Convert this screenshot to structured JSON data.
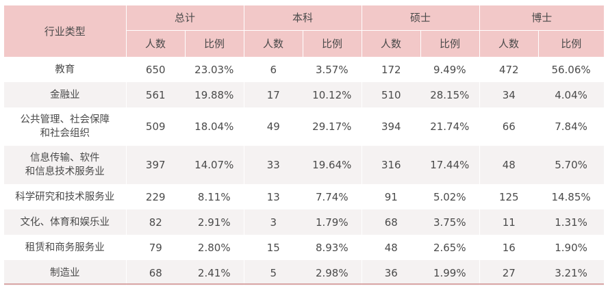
{
  "header": {
    "industry": "行业类型",
    "groups": [
      "总计",
      "本科",
      "硕士",
      "博士"
    ],
    "sub": [
      "人数",
      "比例"
    ]
  },
  "rows": [
    {
      "industry": [
        "教育"
      ],
      "values": [
        "650",
        "23.03%",
        "6",
        "3.57%",
        "172",
        "9.49%",
        "472",
        "56.06%"
      ]
    },
    {
      "industry": [
        "金融业"
      ],
      "values": [
        "561",
        "19.88%",
        "17",
        "10.12%",
        "510",
        "28.15%",
        "34",
        "4.04%"
      ]
    },
    {
      "industry": [
        "公共管理、社会保障",
        "和社会组织"
      ],
      "values": [
        "509",
        "18.04%",
        "49",
        "29.17%",
        "394",
        "21.74%",
        "66",
        "7.84%"
      ]
    },
    {
      "industry": [
        "信息传输、软件",
        "和信息技术服务业"
      ],
      "values": [
        "397",
        "14.07%",
        "33",
        "19.64%",
        "316",
        "17.44%",
        "48",
        "5.70%"
      ]
    },
    {
      "industry": [
        "科学研究和技术服务业"
      ],
      "values": [
        "229",
        "8.11%",
        "13",
        "7.74%",
        "91",
        "5.02%",
        "125",
        "14.85%"
      ]
    },
    {
      "industry": [
        "文化、体育和娱乐业"
      ],
      "values": [
        "82",
        "2.91%",
        "3",
        "1.79%",
        "68",
        "3.75%",
        "11",
        "1.31%"
      ]
    },
    {
      "industry": [
        "租赁和商务服务业"
      ],
      "values": [
        "79",
        "2.80%",
        "15",
        "8.93%",
        "48",
        "2.65%",
        "16",
        "1.90%"
      ]
    },
    {
      "industry": [
        "制造业"
      ],
      "values": [
        "68",
        "2.41%",
        "5",
        "2.98%",
        "36",
        "1.99%",
        "27",
        "3.21%"
      ]
    }
  ],
  "colors": {
    "header_bg": "#f2c8c8",
    "stripe_bg": "#f5f2f2",
    "text": "#4a4a4a",
    "bottom_rule": "#d9a6a6"
  }
}
